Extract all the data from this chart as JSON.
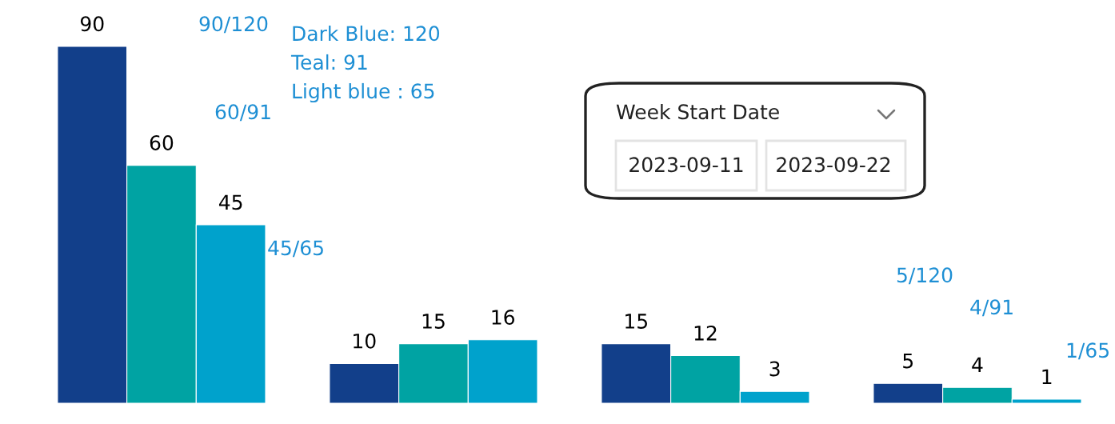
{
  "chart_data": {
    "type": "bar",
    "categories": [
      null,
      null,
      null,
      null
    ],
    "series": [
      {
        "color": "#123f8a",
        "values": [
          90,
          10,
          15,
          5
        ]
      },
      {
        "color": "#00a3a3",
        "values": [
          60,
          15,
          12,
          4
        ]
      },
      {
        "color": "#00a2cc",
        "values": [
          45,
          16,
          3,
          1
        ]
      }
    ],
    "data_labels": true,
    "grid": false,
    "legend": false,
    "annotations": [
      "Dark Blue: 120",
      "Teal: 91",
      "Light blue : 65",
      "90/120",
      "60/91",
      "45/65",
      "5/120",
      "4/91",
      "1/65",
      "Week Start Date",
      "2023-09-11",
      "2023-09-22"
    ]
  }
}
